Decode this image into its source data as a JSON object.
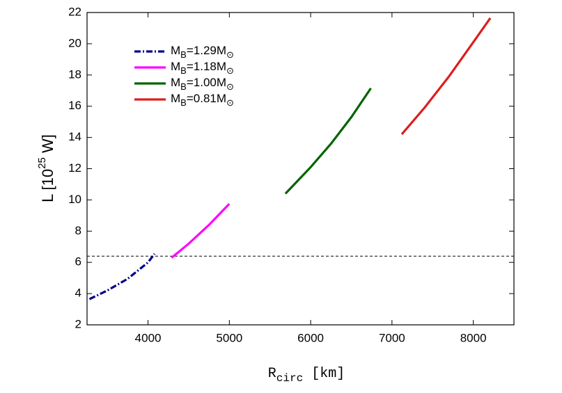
{
  "chart_data": {
    "type": "line",
    "xlabel": {
      "base": "R",
      "sub": "circ",
      "tail": " [km]"
    },
    "ylabel": {
      "base": "L [10",
      "sup": "25",
      "tail": " W]"
    },
    "xlim": [
      3250,
      8500
    ],
    "ylim": [
      2,
      22
    ],
    "xticks": [
      4000,
      5000,
      6000,
      7000,
      8000
    ],
    "yticks": [
      2,
      4,
      6,
      8,
      10,
      12,
      14,
      16,
      18,
      20,
      22
    ],
    "legend": "upper left",
    "reference_line": {
      "y": 6.4,
      "color": "#000000"
    },
    "series": [
      {
        "name": "MB=1.29M⊙",
        "color": "#00008b",
        "dash": "dashdot",
        "x": [
          3280,
          3500,
          3750,
          4000,
          4080
        ],
        "values": [
          3.65,
          4.2,
          4.95,
          6.0,
          6.55
        ]
      },
      {
        "name": "MB=1.18M⊙",
        "color": "#ff00ff",
        "dash": "solid",
        "x": [
          4290,
          4500,
          4750,
          5000
        ],
        "values": [
          6.3,
          7.2,
          8.4,
          9.75
        ]
      },
      {
        "name": "MB=1.00M⊙",
        "color": "#006400",
        "dash": "solid",
        "x": [
          5690,
          6000,
          6250,
          6500,
          6740
        ],
        "values": [
          10.4,
          12.1,
          13.6,
          15.3,
          17.15
        ]
      },
      {
        "name": "MB=0.81M⊙",
        "color": "#dc1e1e",
        "dash": "solid",
        "x": [
          7120,
          7400,
          7700,
          8000,
          8210
        ],
        "values": [
          14.2,
          15.9,
          17.9,
          20.1,
          21.65
        ]
      }
    ]
  }
}
